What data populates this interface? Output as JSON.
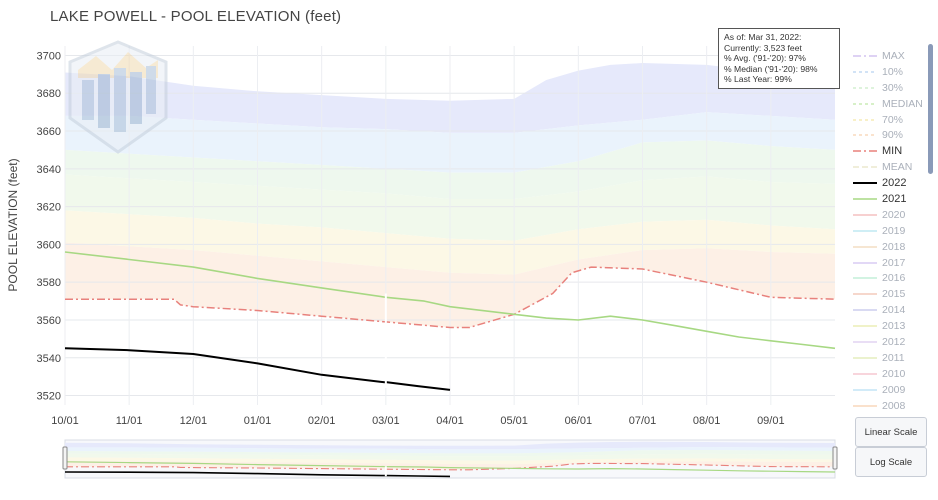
{
  "title": "LAKE POWELL - POOL ELEVATION (feet)",
  "info_box": [
    "As of: Mar 31, 2022:",
    "Currently: 3,523 feet",
    "% Avg. ('91-'20): 97%",
    "% Median ('91-'20): 98%",
    "% Last Year: 99%"
  ],
  "buttons": {
    "linear": "Linear Scale",
    "log": "Log Scale"
  },
  "legend": [
    {
      "label": "MAX",
      "color": "#c9b8ee",
      "dash": "8,3,2,3",
      "width": 1.2,
      "faded": true
    },
    {
      "label": "10%",
      "color": "#b6d2f1",
      "dash": "3,3",
      "width": 1.2,
      "faded": true
    },
    {
      "label": "30%",
      "color": "#c9ecc8",
      "dash": "3,3",
      "width": 1.2,
      "faded": true
    },
    {
      "label": "MEDIAN",
      "color": "#bfe8a6",
      "dash": "3,3",
      "width": 1.2,
      "faded": true
    },
    {
      "label": "70%",
      "color": "#f4e7a8",
      "dash": "3,3",
      "width": 1.2,
      "faded": true
    },
    {
      "label": "90%",
      "color": "#f6d2b0",
      "dash": "3,3",
      "width": 1.2,
      "faded": true
    },
    {
      "label": "MIN",
      "color": "#e8817c",
      "dash": "8,3,2,3",
      "width": 1.5,
      "faded": false
    },
    {
      "label": "MEAN",
      "color": "#e8e4c4",
      "dash": "6,3",
      "width": 1.2,
      "faded": true
    },
    {
      "label": "2022",
      "color": "#000000",
      "dash": "",
      "width": 2,
      "faded": false
    },
    {
      "label": "2021",
      "color": "#a7d883",
      "dash": "",
      "width": 1.6,
      "faded": false
    },
    {
      "label": "2020",
      "color": "#f2b3b3",
      "dash": "",
      "width": 1.2,
      "faded": true
    },
    {
      "label": "2019",
      "color": "#b2e3ef",
      "dash": "",
      "width": 1.2,
      "faded": true
    },
    {
      "label": "2018",
      "color": "#f1d6b8",
      "dash": "",
      "width": 1.2,
      "faded": true
    },
    {
      "label": "2017",
      "color": "#d1c1f1",
      "dash": "",
      "width": 1.2,
      "faded": true
    },
    {
      "label": "2016",
      "color": "#b8ecd1",
      "dash": "",
      "width": 1.2,
      "faded": true
    },
    {
      "label": "2015",
      "color": "#f1bfae",
      "dash": "",
      "width": 1.2,
      "faded": true
    },
    {
      "label": "2014",
      "color": "#c2c4ea",
      "dash": "",
      "width": 1.2,
      "faded": true
    },
    {
      "label": "2013",
      "color": "#e8eaa6",
      "dash": "",
      "width": 1.2,
      "faded": true
    },
    {
      "label": "2012",
      "color": "#dccbef",
      "dash": "",
      "width": 1.2,
      "faded": true
    },
    {
      "label": "2011",
      "color": "#dfe9b0",
      "dash": "",
      "width": 1.2,
      "faded": true
    },
    {
      "label": "2010",
      "color": "#f3bcc8",
      "dash": "",
      "width": 1.2,
      "faded": true
    },
    {
      "label": "2009",
      "color": "#b6dff3",
      "dash": "",
      "width": 1.2,
      "faded": true
    },
    {
      "label": "2008",
      "color": "#f6cfae",
      "dash": "",
      "width": 1.2,
      "faded": true
    }
  ],
  "chart_data": {
    "type": "line",
    "title": "LAKE POWELL - POOL ELEVATION (feet)",
    "ylabel": "POOL ELEVATION (feet)",
    "xlabel": "",
    "ylim": [
      3515,
      3705
    ],
    "xlim": [
      0,
      12
    ],
    "x_ticks": [
      "10/01",
      "11/01",
      "12/01",
      "01/01",
      "02/01",
      "03/01",
      "04/01",
      "05/01",
      "06/01",
      "07/01",
      "08/01",
      "09/01"
    ],
    "y_ticks": [
      3520,
      3540,
      3560,
      3580,
      3600,
      3620,
      3640,
      3660,
      3680,
      3700
    ],
    "grid": true,
    "legend_placement": "right",
    "bands": [
      {
        "upper": "MAX",
        "lower": "10%",
        "color": "#e6e9fb",
        "upper_values": [
          [
            0,
            3691
          ],
          [
            1,
            3689
          ],
          [
            2,
            3684
          ],
          [
            3,
            3681
          ],
          [
            4,
            3679
          ],
          [
            5,
            3677
          ],
          [
            6,
            3676
          ],
          [
            7,
            3677
          ],
          [
            7.5,
            3687
          ],
          [
            8,
            3692
          ],
          [
            8.5,
            3695
          ],
          [
            9,
            3696
          ],
          [
            10,
            3695
          ],
          [
            11,
            3691
          ],
          [
            12,
            3690
          ]
        ],
        "lower_values": [
          [
            0,
            3668
          ],
          [
            1,
            3668
          ],
          [
            2,
            3666
          ],
          [
            3,
            3664
          ],
          [
            4,
            3662
          ],
          [
            5,
            3661
          ],
          [
            6,
            3659
          ],
          [
            7,
            3659
          ],
          [
            8,
            3663
          ],
          [
            9,
            3666
          ],
          [
            10,
            3670
          ],
          [
            11,
            3668
          ],
          [
            12,
            3666
          ]
        ]
      },
      {
        "upper": "10%",
        "lower": "30%",
        "color": "#eaf3fc",
        "upper_values": [
          [
            0,
            3668
          ],
          [
            1,
            3668
          ],
          [
            2,
            3666
          ],
          [
            3,
            3664
          ],
          [
            4,
            3662
          ],
          [
            5,
            3661
          ],
          [
            6,
            3659
          ],
          [
            7,
            3659
          ],
          [
            8,
            3663
          ],
          [
            9,
            3666
          ],
          [
            10,
            3670
          ],
          [
            11,
            3668
          ],
          [
            12,
            3666
          ]
        ],
        "lower_values": [
          [
            0,
            3650
          ],
          [
            1,
            3648
          ],
          [
            2,
            3646
          ],
          [
            3,
            3644
          ],
          [
            4,
            3642
          ],
          [
            5,
            3640
          ],
          [
            6,
            3638
          ],
          [
            7,
            3638
          ],
          [
            8,
            3644
          ],
          [
            9,
            3654
          ],
          [
            10,
            3655
          ],
          [
            11,
            3652
          ],
          [
            12,
            3650
          ]
        ]
      },
      {
        "upper": "30%",
        "lower": "MEDIAN",
        "color": "#eef8ee",
        "upper_values": [
          [
            0,
            3650
          ],
          [
            1,
            3648
          ],
          [
            2,
            3646
          ],
          [
            3,
            3644
          ],
          [
            4,
            3642
          ],
          [
            5,
            3640
          ],
          [
            6,
            3638
          ],
          [
            7,
            3638
          ],
          [
            8,
            3644
          ],
          [
            9,
            3654
          ],
          [
            10,
            3655
          ],
          [
            11,
            3652
          ],
          [
            12,
            3650
          ]
        ],
        "lower_values": [
          [
            0,
            3637
          ],
          [
            1,
            3635
          ],
          [
            2,
            3633
          ],
          [
            3,
            3631
          ],
          [
            4,
            3629
          ],
          [
            5,
            3627
          ],
          [
            6,
            3624
          ],
          [
            7,
            3624
          ],
          [
            8,
            3628
          ],
          [
            9,
            3634
          ],
          [
            10,
            3636
          ],
          [
            11,
            3633
          ],
          [
            12,
            3632
          ]
        ]
      },
      {
        "upper": "MEDIAN",
        "lower": "70%",
        "color": "#f1f9ec",
        "upper_values": [
          [
            0,
            3637
          ],
          [
            1,
            3635
          ],
          [
            2,
            3633
          ],
          [
            3,
            3631
          ],
          [
            4,
            3629
          ],
          [
            5,
            3627
          ],
          [
            6,
            3624
          ],
          [
            7,
            3624
          ],
          [
            8,
            3628
          ],
          [
            9,
            3634
          ],
          [
            10,
            3636
          ],
          [
            11,
            3633
          ],
          [
            12,
            3632
          ]
        ],
        "lower_values": [
          [
            0,
            3618
          ],
          [
            1,
            3616
          ],
          [
            2,
            3614
          ],
          [
            3,
            3611
          ],
          [
            4,
            3609
          ],
          [
            5,
            3606
          ],
          [
            6,
            3603
          ],
          [
            7,
            3602
          ],
          [
            8,
            3608
          ],
          [
            9,
            3612
          ],
          [
            10,
            3613
          ],
          [
            11,
            3610
          ],
          [
            12,
            3608
          ]
        ]
      },
      {
        "upper": "70%",
        "lower": "90%",
        "color": "#fcf8e6",
        "upper_values": [
          [
            0,
            3618
          ],
          [
            1,
            3616
          ],
          [
            2,
            3614
          ],
          [
            3,
            3611
          ],
          [
            4,
            3609
          ],
          [
            5,
            3606
          ],
          [
            6,
            3603
          ],
          [
            7,
            3602
          ],
          [
            8,
            3608
          ],
          [
            9,
            3612
          ],
          [
            10,
            3613
          ],
          [
            11,
            3610
          ],
          [
            12,
            3608
          ]
        ],
        "lower_values": [
          [
            0,
            3601
          ],
          [
            1,
            3599
          ],
          [
            2,
            3597
          ],
          [
            3,
            3594
          ],
          [
            4,
            3591
          ],
          [
            5,
            3588
          ],
          [
            6,
            3585
          ],
          [
            7,
            3584
          ],
          [
            8,
            3592
          ],
          [
            9,
            3597
          ],
          [
            10,
            3598
          ],
          [
            11,
            3596
          ],
          [
            12,
            3595
          ]
        ]
      },
      {
        "upper": "90%",
        "lower": "MIN",
        "color": "#fdf0e6",
        "upper_values": [
          [
            0,
            3601
          ],
          [
            1,
            3599
          ],
          [
            2,
            3597
          ],
          [
            3,
            3594
          ],
          [
            4,
            3591
          ],
          [
            5,
            3588
          ],
          [
            6,
            3585
          ],
          [
            7,
            3584
          ],
          [
            8,
            3592
          ],
          [
            9,
            3597
          ],
          [
            10,
            3598
          ],
          [
            11,
            3596
          ],
          [
            12,
            3595
          ]
        ],
        "lower_values": [
          [
            0,
            3571
          ],
          [
            1,
            3571
          ],
          [
            1.7,
            3571
          ],
          [
            1.8,
            3568
          ],
          [
            2,
            3567
          ],
          [
            3,
            3565
          ],
          [
            4,
            3562
          ],
          [
            5,
            3559
          ],
          [
            6,
            3556
          ],
          [
            6.3,
            3556
          ],
          [
            7,
            3563
          ],
          [
            7.6,
            3574
          ],
          [
            7.9,
            3585
          ],
          [
            8.2,
            3588
          ],
          [
            9,
            3587
          ],
          [
            10,
            3580
          ],
          [
            11,
            3572
          ],
          [
            12,
            3571
          ]
        ]
      }
    ],
    "series": [
      {
        "name": "MIN",
        "color": "#e8817c",
        "dash": "8,3,2,3",
        "width": 1.5,
        "points": [
          [
            0,
            3571
          ],
          [
            1,
            3571
          ],
          [
            1.7,
            3571
          ],
          [
            1.8,
            3568
          ],
          [
            2,
            3567
          ],
          [
            3,
            3565
          ],
          [
            4,
            3562
          ],
          [
            5,
            3559
          ],
          [
            6,
            3556
          ],
          [
            6.3,
            3556
          ],
          [
            7,
            3563
          ],
          [
            7.6,
            3574
          ],
          [
            7.9,
            3585
          ],
          [
            8.2,
            3588
          ],
          [
            9,
            3587
          ],
          [
            10,
            3580
          ],
          [
            11,
            3572
          ],
          [
            12,
            3571
          ]
        ]
      },
      {
        "name": "2021",
        "color": "#a7d883",
        "dash": "",
        "width": 1.6,
        "points": [
          [
            0,
            3596
          ],
          [
            1,
            3592
          ],
          [
            2,
            3588
          ],
          [
            3,
            3582
          ],
          [
            4,
            3577
          ],
          [
            5,
            3572
          ],
          [
            5.6,
            3570
          ],
          [
            6,
            3567
          ],
          [
            7,
            3563
          ],
          [
            7.5,
            3561
          ],
          [
            8,
            3560
          ],
          [
            8.5,
            3562
          ],
          [
            9,
            3560
          ],
          [
            9.5,
            3557
          ],
          [
            10,
            3554
          ],
          [
            10.5,
            3551
          ],
          [
            11,
            3549
          ],
          [
            11.5,
            3547
          ],
          [
            12,
            3545
          ]
        ]
      },
      {
        "name": "2022",
        "color": "#000000",
        "dash": "",
        "width": 2,
        "points": [
          [
            0,
            3545
          ],
          [
            1,
            3544
          ],
          [
            2,
            3542
          ],
          [
            3,
            3537
          ],
          [
            4,
            3531
          ],
          [
            4.98,
            3527
          ],
          [
            5.02,
            3527
          ],
          [
            5.5,
            3525
          ],
          [
            6,
            3523
          ]
        ]
      }
    ],
    "annotations": [
      "As of: Mar 31, 2022:",
      "Currently: 3,523 feet",
      "% Avg. ('91-'20): 97%",
      "% Median ('91-'20): 98%",
      "% Last Year: 99%"
    ]
  }
}
